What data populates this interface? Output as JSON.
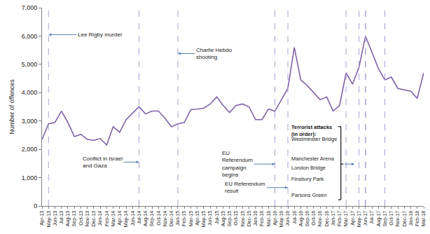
{
  "chart_data": {
    "type": "line",
    "y_label": "Number of offences",
    "color": "#7f63a8",
    "grid": false,
    "categories": [
      "Apr-13",
      "May-13",
      "Jun-13",
      "Jul-13",
      "Aug-13",
      "Sep-13",
      "Oct-13",
      "Nov-13",
      "Dec-13",
      "Jan-14",
      "Feb-14",
      "Mar-14",
      "Apr-14",
      "May-14",
      "Jun-14",
      "Jul-14",
      "Aug-14",
      "Sep-14",
      "Oct-14",
      "Nov-14",
      "Dec-14",
      "Jan-15",
      "Feb-15",
      "Mar-15",
      "Apr-15",
      "May-15",
      "Jun-15",
      "Jul-15",
      "Aug-15",
      "Sep-15",
      "Oct-15",
      "Nov-15",
      "Dec-15",
      "Jan-16",
      "Feb-16",
      "Mar-16",
      "Apr-16",
      "May-16",
      "Jun-16",
      "Jul-16",
      "Aug-16",
      "Sep-16",
      "Oct-16",
      "Nov-16",
      "Dec-16",
      "Jan-17",
      "Feb-17",
      "Mar-17",
      "Apr-17",
      "May-17",
      "Jun-17",
      "Jul-17",
      "Aug-17",
      "Sep-17",
      "Oct-17",
      "Nov-17",
      "Dec-17",
      "Jan-18",
      "Feb-18",
      "Mar-18"
    ],
    "values": [
      2350,
      2900,
      2950,
      3350,
      2950,
      2450,
      2530,
      2350,
      2320,
      2380,
      2150,
      2800,
      2600,
      3050,
      3280,
      3500,
      3250,
      3350,
      3350,
      3100,
      2800,
      2900,
      2950,
      3400,
      3420,
      3450,
      3600,
      3850,
      3550,
      3300,
      3550,
      3600,
      3500,
      3050,
      3050,
      3420,
      3350,
      3750,
      4150,
      5600,
      4450,
      4250,
      4000,
      3750,
      3850,
      3350,
      3550,
      4700,
      4300,
      4900,
      6000,
      5400,
      4850,
      4450,
      4550,
      4150,
      4100,
      4050,
      3800,
      4700
    ],
    "ylim": [
      0,
      7000
    ],
    "yticks": [
      0,
      {
        "value": 1000,
        "label": "1,000"
      },
      {
        "value": 2000,
        "label": "2,000"
      },
      {
        "value": 3000,
        "label": "3,000"
      },
      {
        "value": 4000,
        "label": "4,000"
      },
      {
        "value": 5000,
        "label": "5,000"
      },
      {
        "value": 6000,
        "label": "6,000"
      },
      {
        "value": 7000,
        "label": "7,000"
      }
    ],
    "annotations": [
      {
        "text": "Lee Rigby murder",
        "x": "May-13"
      },
      {
        "text": "Conflict in Israel\nand Gaza",
        "x": "Jul-14"
      },
      {
        "text": "Charlie Hebdo\nshooting",
        "x": "Jan-15"
      },
      {
        "text": "EU\nReferendum\ncampaign\nbegins",
        "x": "Apr-16"
      },
      {
        "text": "EU Referendum\nresult",
        "x": "Jun-16"
      }
    ],
    "terrorist_attacks": {
      "title": "Terrorist attacks\n(in order):",
      "events": [
        {
          "text": "Westminster Bridge",
          "x": "Mar-17"
        },
        {
          "text": "Manchester Arena",
          "x": "May-17"
        },
        {
          "text": "London Bridge",
          "x": "Jun-17"
        },
        {
          "text": "Finsbury Park",
          "x": "Jun-17"
        },
        {
          "text": "Parsons Green",
          "x": "Sep-17"
        }
      ]
    }
  }
}
